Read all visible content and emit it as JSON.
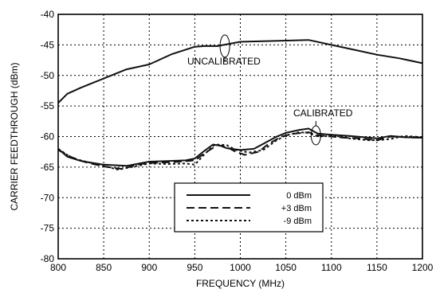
{
  "chart_data": {
    "type": "line",
    "title": "",
    "xlabel": "FREQUENCY (MHz)",
    "ylabel": "CARRIER FEEDTHROUGH (dBm)",
    "xlim": [
      800,
      1200
    ],
    "ylim": [
      -80,
      -40
    ],
    "x_ticks": [
      800,
      850,
      900,
      950,
      1000,
      1050,
      1100,
      1150,
      1200
    ],
    "y_ticks": [
      -80,
      -75,
      -70,
      -65,
      -60,
      -55,
      -50,
      -45,
      -40
    ],
    "grid": "dotted",
    "legend_position": "bottom-center",
    "series": [
      {
        "name": "0 dBm",
        "line_style": "solid",
        "color": "#111111",
        "x": [
          800,
          810,
          825,
          850,
          875,
          900,
          920,
          940,
          950,
          960,
          970,
          978,
          985,
          1000,
          1015,
          1025,
          1040,
          1050,
          1065,
          1075,
          1085,
          1100,
          1120,
          1150,
          1165,
          1180,
          1200
        ],
        "y": [
          -62.0,
          -63.3,
          -64.0,
          -64.6,
          -64.8,
          -64.1,
          -64.0,
          -63.9,
          -63.6,
          -62.4,
          -61.3,
          -61.5,
          -61.9,
          -62.2,
          -62.0,
          -61.2,
          -60.0,
          -59.4,
          -58.9,
          -58.7,
          -59.5,
          -59.7,
          -59.9,
          -60.3,
          -59.9,
          -60.1,
          -60.2
        ]
      },
      {
        "name": "+3 dBm",
        "line_style": "dashed",
        "color": "#111111",
        "x": [
          800,
          815,
          830,
          850,
          870,
          890,
          905,
          925,
          950,
          962,
          975,
          985,
          995,
          1005,
          1020,
          1030,
          1045,
          1060,
          1075,
          1085,
          1100,
          1115,
          1130,
          1150,
          1165,
          1180,
          1200
        ],
        "y": [
          -62.2,
          -63.4,
          -64.2,
          -64.9,
          -65.3,
          -64.5,
          -64.3,
          -64.2,
          -63.9,
          -62.6,
          -61.4,
          -61.7,
          -62.5,
          -63.0,
          -62.5,
          -61.3,
          -60.0,
          -59.5,
          -59.3,
          -59.8,
          -60.0,
          -60.2,
          -60.3,
          -60.6,
          -60.0,
          -60.1,
          -60.2
        ]
      },
      {
        "name": "-9 dBm",
        "line_style": "dotted",
        "color": "#111111",
        "x": [
          800,
          815,
          830,
          850,
          865,
          880,
          900,
          920,
          940,
          950,
          960,
          972,
          985,
          995,
          1010,
          1025,
          1040,
          1050,
          1065,
          1075,
          1085,
          1100,
          1120,
          1140,
          1150,
          1165,
          1180,
          1200
        ],
        "y": [
          -62.0,
          -63.5,
          -64.1,
          -64.8,
          -65.4,
          -65.0,
          -64.4,
          -64.5,
          -64.4,
          -64.6,
          -63.0,
          -61.3,
          -61.4,
          -62.2,
          -62.6,
          -62.2,
          -60.6,
          -59.8,
          -59.3,
          -59.4,
          -60.0,
          -59.9,
          -60.3,
          -60.6,
          -60.6,
          -60.4,
          -59.9,
          -60.1
        ]
      },
      {
        "name": "UNCALIBRATED",
        "line_style": "solid",
        "color": "#111111",
        "x": [
          800,
          810,
          825,
          850,
          875,
          900,
          925,
          950,
          960,
          975,
          985,
          1000,
          1025,
          1050,
          1075,
          1100,
          1125,
          1150,
          1175,
          1200
        ],
        "y": [
          -54.5,
          -53.0,
          -52.0,
          -50.5,
          -49.0,
          -48.2,
          -46.5,
          -45.3,
          -45.2,
          -45.2,
          -44.9,
          -44.5,
          -44.4,
          -44.3,
          -44.2,
          -45.0,
          -45.8,
          -46.6,
          -47.2,
          -48.0
        ]
      }
    ],
    "annotations": [
      "UNCALIBRATED",
      "CALIBRATED"
    ],
    "legend": [
      "0 dBm",
      "+3 dBm",
      "-9 dBm"
    ]
  }
}
